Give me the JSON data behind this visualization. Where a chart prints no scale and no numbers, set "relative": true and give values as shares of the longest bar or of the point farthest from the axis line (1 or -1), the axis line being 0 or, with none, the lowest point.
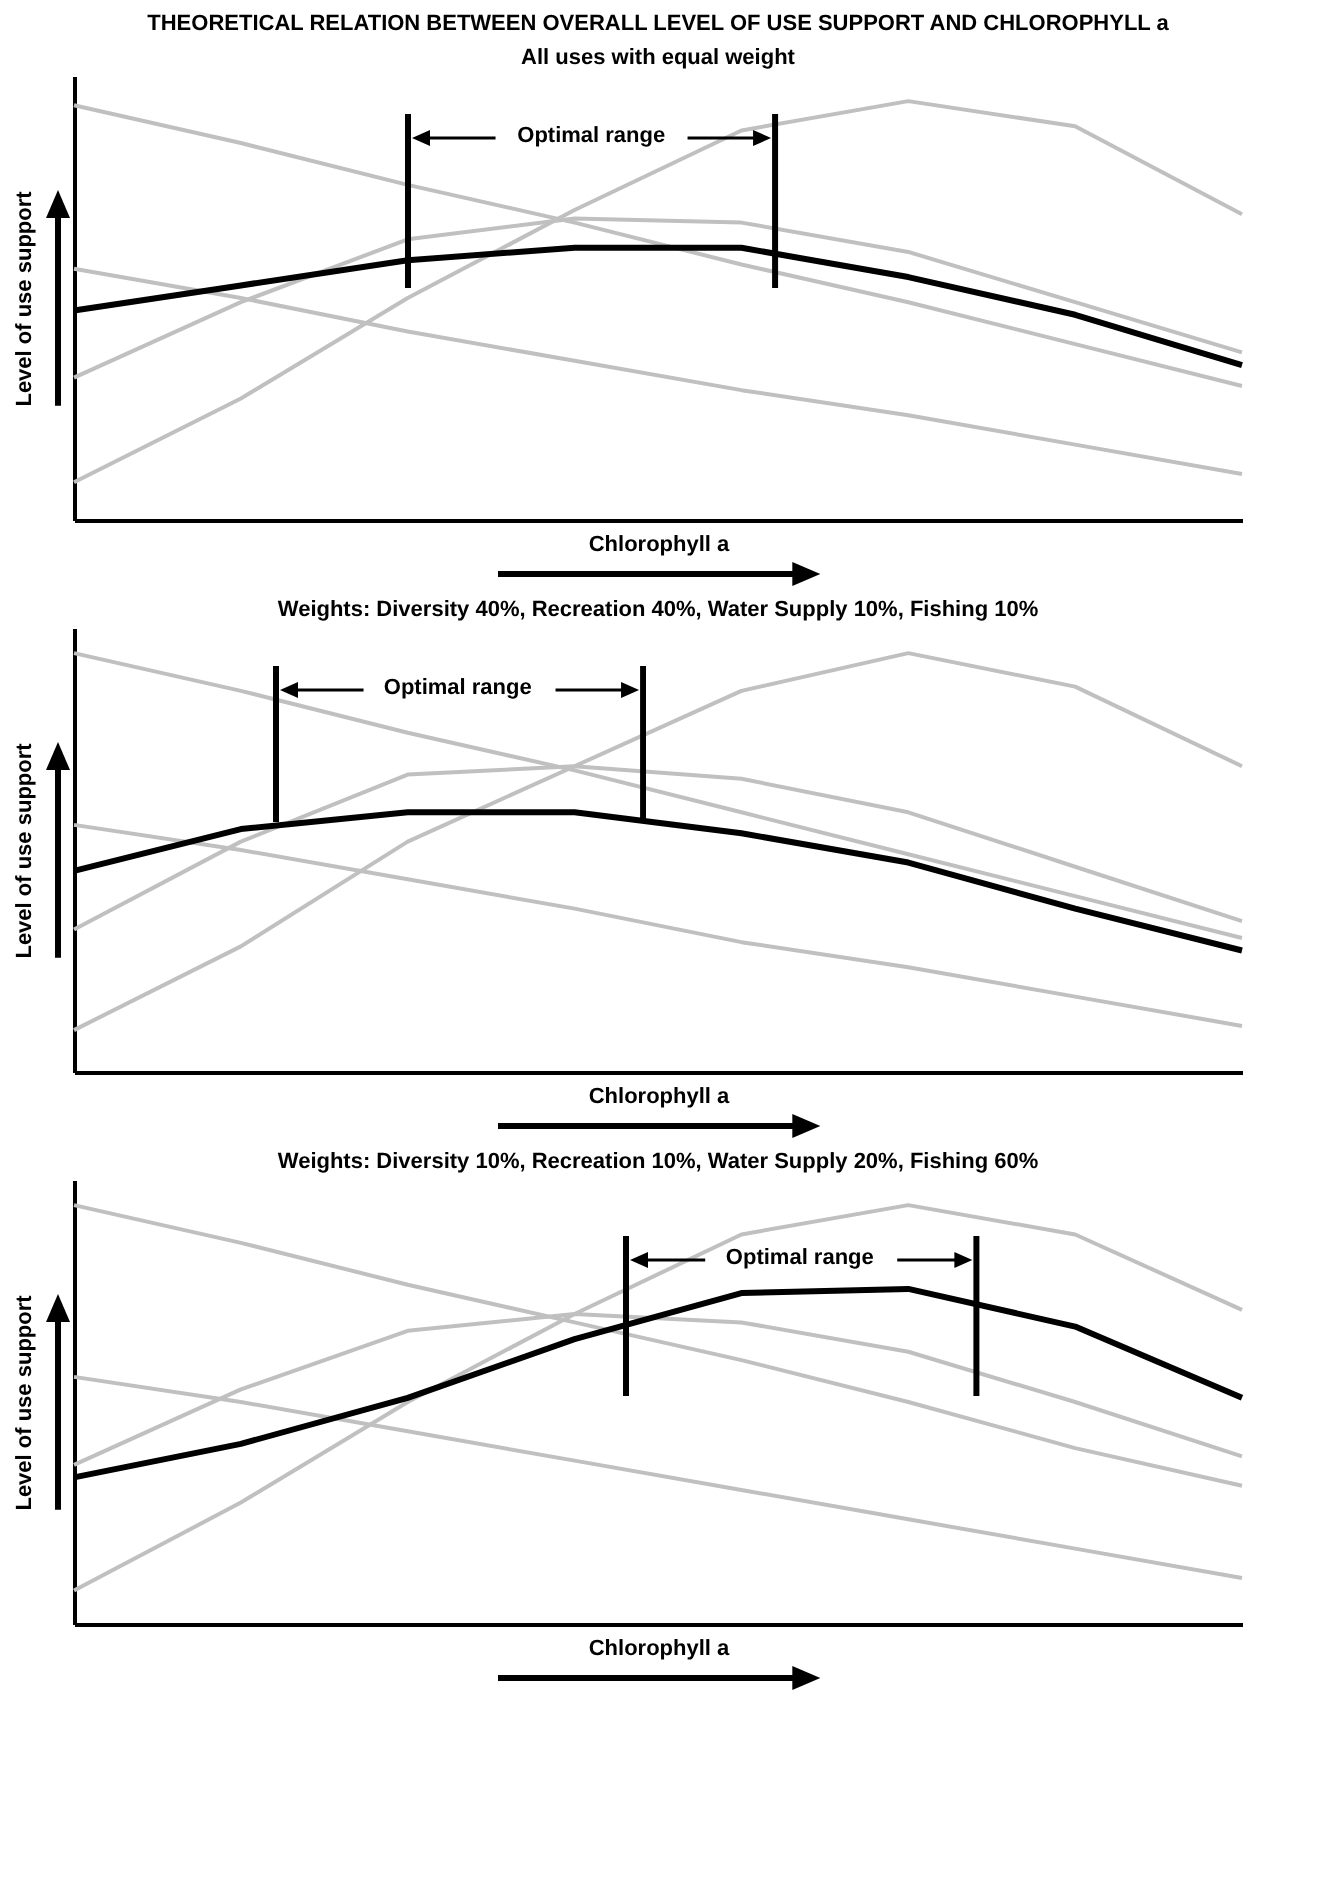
{
  "chart_data": [
    {
      "type": "line",
      "title": "THEORETICAL RELATION BETWEEN OVERALL LEVEL OF USE SUPPORT AND CHLOROPHYLL a",
      "subtitle": "All uses with equal weight",
      "xlabel": "Chlorophyll a",
      "ylabel": "Level of use support",
      "relative": true,
      "categories": [
        null,
        null,
        null,
        null,
        null,
        null,
        null,
        null
      ],
      "series": [
        {
          "color": "#c0c0c0",
          "values": [
            0.99,
            0.9,
            0.8,
            0.71,
            0.61,
            0.52,
            0.42,
            0.32
          ]
        },
        {
          "color": "#c0c0c0",
          "values": [
            0.6,
            0.53,
            0.45,
            0.38,
            0.31,
            0.25,
            0.18,
            0.11
          ]
        },
        {
          "color": "#c0c0c0",
          "values": [
            0.34,
            0.52,
            0.67,
            0.72,
            0.71,
            0.64,
            0.52,
            0.4
          ]
        },
        {
          "color": "#c0c0c0",
          "values": [
            0.09,
            0.29,
            0.53,
            0.74,
            0.93,
            1.0,
            0.94,
            0.73
          ]
        },
        {
          "color": "#000000",
          "values": [
            0.5,
            0.56,
            0.62,
            0.65,
            0.65,
            0.58,
            0.49,
            0.37
          ]
        }
      ],
      "annotations": [
        "Optimal range"
      ]
    },
    {
      "type": "line",
      "subtitle": "Weights: Diversity 40%, Recreation 40%, Water Supply 10%, Fishing 10%",
      "xlabel": "Chlorophyll a",
      "ylabel": "Level of use support",
      "relative": true,
      "categories": [
        null,
        null,
        null,
        null,
        null,
        null,
        null,
        null
      ],
      "series": [
        {
          "color": "#c0c0c0",
          "values": [
            1.0,
            0.91,
            0.81,
            0.72,
            0.62,
            0.52,
            0.42,
            0.32
          ]
        },
        {
          "color": "#c0c0c0",
          "values": [
            0.59,
            0.53,
            0.46,
            0.39,
            0.31,
            0.25,
            0.18,
            0.11
          ]
        },
        {
          "color": "#c0c0c0",
          "values": [
            0.34,
            0.55,
            0.71,
            0.73,
            0.7,
            0.62,
            0.49,
            0.36
          ]
        },
        {
          "color": "#c0c0c0",
          "values": [
            0.1,
            0.3,
            0.55,
            0.73,
            0.91,
            1.0,
            0.92,
            0.73
          ]
        },
        {
          "color": "#000000",
          "values": [
            0.48,
            0.58,
            0.62,
            0.62,
            0.57,
            0.5,
            0.39,
            0.29
          ]
        }
      ],
      "annotations": [
        "Optimal range"
      ]
    },
    {
      "type": "line",
      "subtitle": "Weights: Diversity 10%, Recreation 10%, Water Supply 20%, Fishing 60%",
      "xlabel": "Chlorophyll a",
      "ylabel": "Level of use support",
      "relative": true,
      "categories": [
        null,
        null,
        null,
        null,
        null,
        null,
        null,
        null
      ],
      "series": [
        {
          "color": "#c0c0c0",
          "values": [
            1.0,
            0.91,
            0.81,
            0.72,
            0.63,
            0.53,
            0.42,
            0.33
          ]
        },
        {
          "color": "#c0c0c0",
          "values": [
            0.59,
            0.53,
            0.46,
            0.39,
            0.32,
            0.25,
            0.18,
            0.11
          ]
        },
        {
          "color": "#c0c0c0",
          "values": [
            0.38,
            0.56,
            0.7,
            0.74,
            0.72,
            0.65,
            0.53,
            0.4
          ]
        },
        {
          "color": "#c0c0c0",
          "values": [
            0.08,
            0.29,
            0.53,
            0.74,
            0.93,
            1.0,
            0.93,
            0.75
          ]
        },
        {
          "color": "#000000",
          "values": [
            0.35,
            0.43,
            0.54,
            0.68,
            0.79,
            0.8,
            0.71,
            0.54
          ]
        }
      ],
      "annotations": [
        "Optimal range"
      ]
    }
  ]
}
